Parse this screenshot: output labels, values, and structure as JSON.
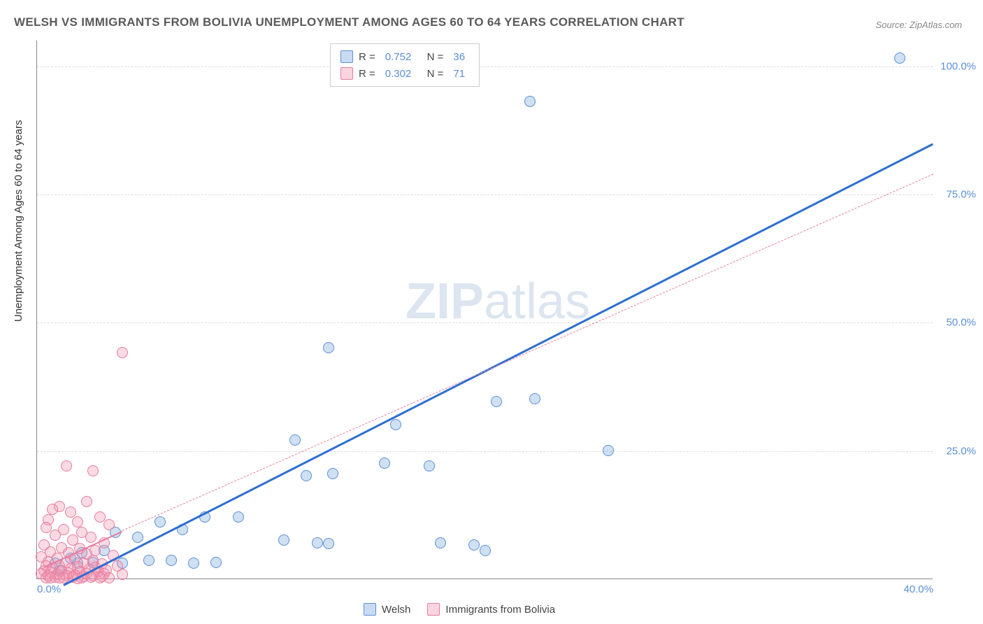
{
  "title": "WELSH VS IMMIGRANTS FROM BOLIVIA UNEMPLOYMENT AMONG AGES 60 TO 64 YEARS CORRELATION CHART",
  "source": "Source: ZipAtlas.com",
  "ylabel": "Unemployment Among Ages 60 to 64 years",
  "watermark_bold": "ZIP",
  "watermark_rest": "atlas",
  "chart": {
    "type": "scatter",
    "xlim": [
      0,
      40
    ],
    "ylim": [
      0,
      105
    ],
    "xticks": [
      {
        "v": 0,
        "label": "0.0%"
      },
      {
        "v": 40,
        "label": "40.0%"
      }
    ],
    "yticks": [
      {
        "v": 25,
        "label": "25.0%"
      },
      {
        "v": 50,
        "label": "50.0%"
      },
      {
        "v": 75,
        "label": "75.0%"
      },
      {
        "v": 100,
        "label": "100.0%"
      }
    ],
    "grid_color": "#dddddd",
    "background_color": "#ffffff",
    "axis_label_color": "#5b8fd6",
    "series": [
      {
        "name": "Welsh",
        "marker_fill": "rgba(120,165,220,0.35)",
        "marker_stroke": "#5b8fd6",
        "marker_radius": 8,
        "trend_color": "#2e6fd0",
        "trend_style": "solid",
        "trend_width": 3,
        "trend": {
          "x0": 1.2,
          "y0": -1,
          "x1": 40,
          "y1": 85
        },
        "legend_swatch_fill": "rgba(120,165,220,0.4)",
        "legend_swatch_stroke": "#5b8fd6",
        "R": "0.752",
        "N": "36",
        "points": [
          [
            38.5,
            101.5
          ],
          [
            22.0,
            93.0
          ],
          [
            13.0,
            45.0
          ],
          [
            20.5,
            34.5
          ],
          [
            22.2,
            35.0
          ],
          [
            16.0,
            30.0
          ],
          [
            11.5,
            27.0
          ],
          [
            25.5,
            25.0
          ],
          [
            15.5,
            22.5
          ],
          [
            17.5,
            22.0
          ],
          [
            13.2,
            20.5
          ],
          [
            12.0,
            20.0
          ],
          [
            9.0,
            12.0
          ],
          [
            7.5,
            12.0
          ],
          [
            5.5,
            11.0
          ],
          [
            6.5,
            9.5
          ],
          [
            11.0,
            7.5
          ],
          [
            12.5,
            7.0
          ],
          [
            13.0,
            6.8
          ],
          [
            18.0,
            7.0
          ],
          [
            19.5,
            6.5
          ],
          [
            20.0,
            5.5
          ],
          [
            3.5,
            9.0
          ],
          [
            4.5,
            8.0
          ],
          [
            3.0,
            5.5
          ],
          [
            2.0,
            5.0
          ],
          [
            1.5,
            4.0
          ],
          [
            0.8,
            3.0
          ],
          [
            1.8,
            3.0
          ],
          [
            2.5,
            3.2
          ],
          [
            3.8,
            3.0
          ],
          [
            5.0,
            3.5
          ],
          [
            6.0,
            3.5
          ],
          [
            7.0,
            3.0
          ],
          [
            8.0,
            3.2
          ],
          [
            1.0,
            1.5
          ]
        ]
      },
      {
        "name": "Immigrants from Bolivia",
        "marker_fill": "rgba(240,150,175,0.35)",
        "marker_stroke": "#e87ba0",
        "marker_radius": 8,
        "trend_color": "#e87ba0",
        "trend_style": "dashed",
        "trend_width": 1.5,
        "trend_short": {
          "x0": 0.3,
          "y0": 2.5,
          "x1": 3.8,
          "y1": 9.5
        },
        "trend_long": {
          "x0": 3.8,
          "y0": 9.5,
          "x1": 40,
          "y1": 79
        },
        "legend_swatch_fill": "rgba(240,150,175,0.4)",
        "legend_swatch_stroke": "#e87ba0",
        "R": "0.302",
        "N": "71",
        "points": [
          [
            3.8,
            44.0
          ],
          [
            1.3,
            22.0
          ],
          [
            2.5,
            21.0
          ],
          [
            2.2,
            15.0
          ],
          [
            1.0,
            14.0
          ],
          [
            0.7,
            13.5
          ],
          [
            1.5,
            13.0
          ],
          [
            2.8,
            12.0
          ],
          [
            0.5,
            11.5
          ],
          [
            1.8,
            11.0
          ],
          [
            3.2,
            10.5
          ],
          [
            0.4,
            10.0
          ],
          [
            1.2,
            9.5
          ],
          [
            2.0,
            9.0
          ],
          [
            0.8,
            8.5
          ],
          [
            2.4,
            8.0
          ],
          [
            1.6,
            7.5
          ],
          [
            3.0,
            7.0
          ],
          [
            0.3,
            6.5
          ],
          [
            1.1,
            6.0
          ],
          [
            1.9,
            5.8
          ],
          [
            2.6,
            5.5
          ],
          [
            0.6,
            5.2
          ],
          [
            1.4,
            5.0
          ],
          [
            2.2,
            4.8
          ],
          [
            3.4,
            4.5
          ],
          [
            0.2,
            4.2
          ],
          [
            0.9,
            4.0
          ],
          [
            1.7,
            3.8
          ],
          [
            2.5,
            3.5
          ],
          [
            0.5,
            3.3
          ],
          [
            1.3,
            3.2
          ],
          [
            2.1,
            3.0
          ],
          [
            2.9,
            2.8
          ],
          [
            3.6,
            2.5
          ],
          [
            0.4,
            2.5
          ],
          [
            1.0,
            2.4
          ],
          [
            1.8,
            2.3
          ],
          [
            2.6,
            2.2
          ],
          [
            0.7,
            2.0
          ],
          [
            1.5,
            1.9
          ],
          [
            2.3,
            1.8
          ],
          [
            3.1,
            1.7
          ],
          [
            0.3,
            1.5
          ],
          [
            1.1,
            1.5
          ],
          [
            1.9,
            1.4
          ],
          [
            2.7,
            1.3
          ],
          [
            0.6,
            1.2
          ],
          [
            1.4,
            1.1
          ],
          [
            2.2,
            1.0
          ],
          [
            3.0,
            0.9
          ],
          [
            3.8,
            0.8
          ],
          [
            0.2,
            0.9
          ],
          [
            0.9,
            0.8
          ],
          [
            1.7,
            0.7
          ],
          [
            2.5,
            0.6
          ],
          [
            0.5,
            0.5
          ],
          [
            1.3,
            0.5
          ],
          [
            2.1,
            0.4
          ],
          [
            2.9,
            0.4
          ],
          [
            0.8,
            0.3
          ],
          [
            1.6,
            0.3
          ],
          [
            2.4,
            0.3
          ],
          [
            3.2,
            0.2
          ],
          [
            0.4,
            0.2
          ],
          [
            1.2,
            0.2
          ],
          [
            2.0,
            0.1
          ],
          [
            2.8,
            0.1
          ],
          [
            1.0,
            0.1
          ],
          [
            1.8,
            0.0
          ],
          [
            0.6,
            0.1
          ]
        ]
      }
    ]
  },
  "legend_bottom": [
    {
      "label": "Welsh",
      "fill": "rgba(120,165,220,0.4)",
      "stroke": "#5b8fd6"
    },
    {
      "label": "Immigrants from Bolivia",
      "fill": "rgba(240,150,175,0.4)",
      "stroke": "#e87ba0"
    }
  ]
}
